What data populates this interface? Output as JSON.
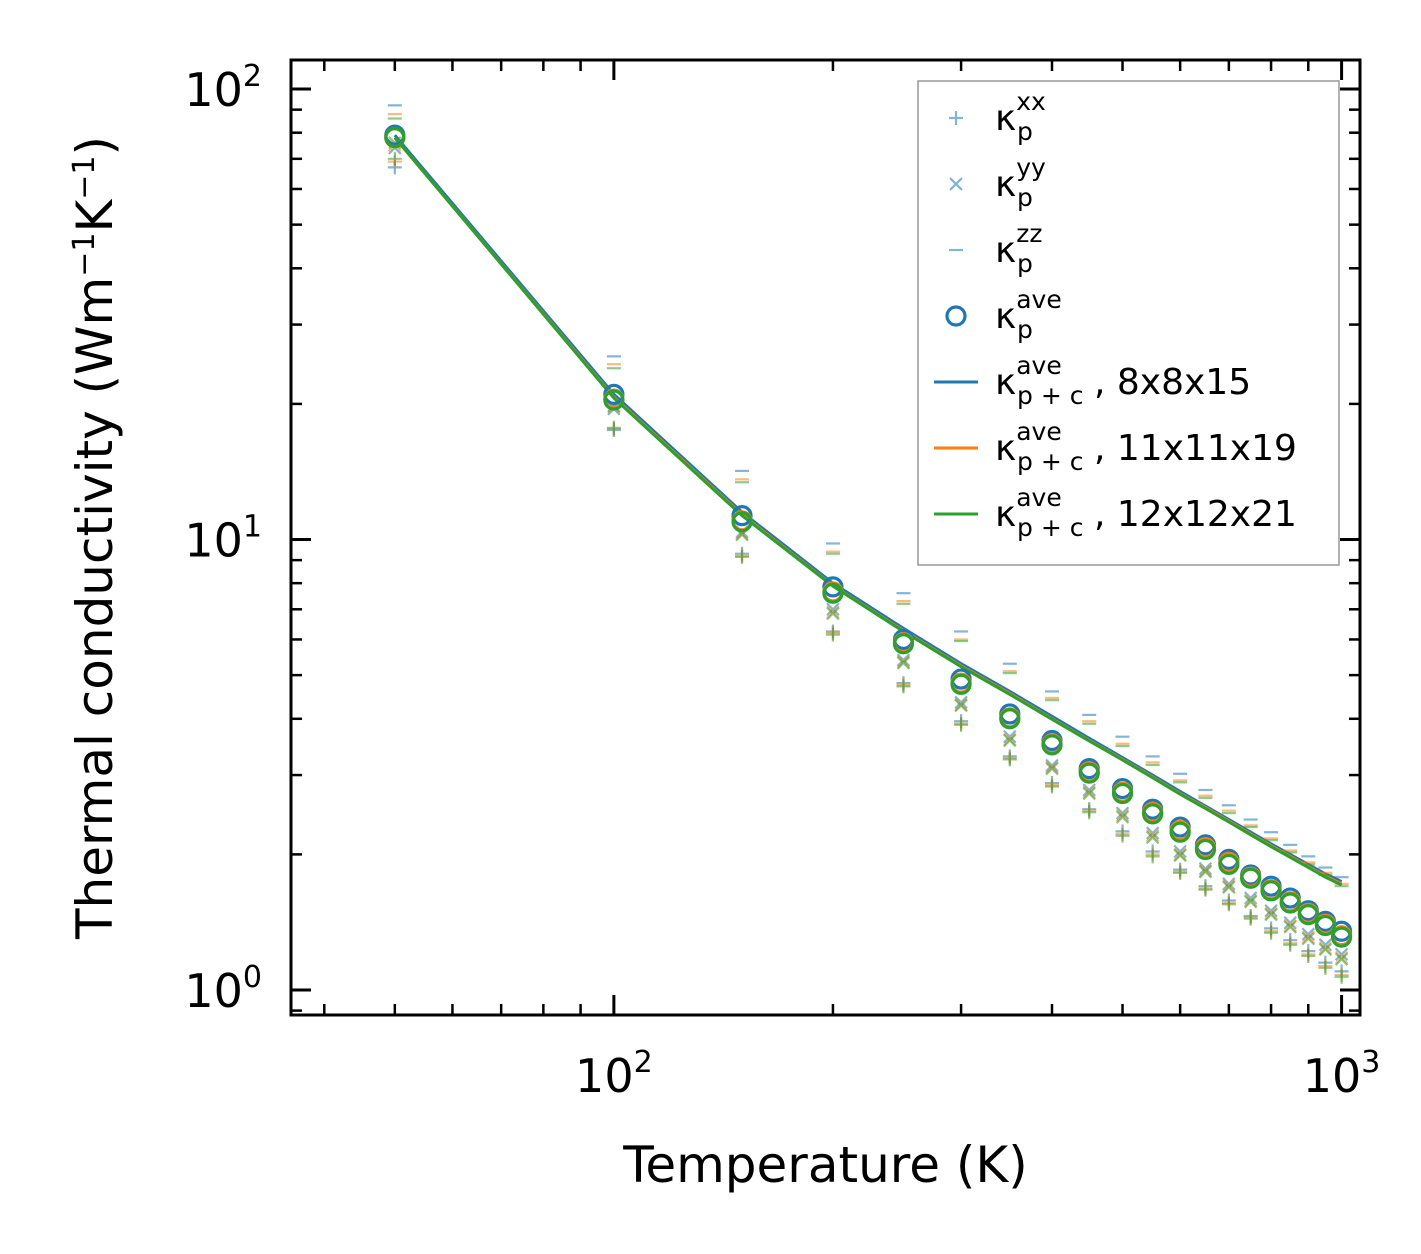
{
  "chart_data": {
    "type": "scatter",
    "xscale": "log",
    "yscale": "log",
    "xlim": [
      36,
      1060
    ],
    "ylim": [
      0.88,
      116
    ],
    "xlabel": "Temperature (K)",
    "ylabel_parts": {
      "main": "Thermal conductivity (Wm",
      "exp1": "−1",
      "mid": "K",
      "exp2": "−1",
      "end": ")"
    },
    "x_ticks": [
      {
        "value": 100,
        "base": "10",
        "exp": "2"
      },
      {
        "value": 1000,
        "base": "10",
        "exp": "3"
      }
    ],
    "y_ticks": [
      {
        "value": 1,
        "base": "10",
        "exp": "0"
      },
      {
        "value": 10,
        "base": "10",
        "exp": "1"
      },
      {
        "value": 100,
        "base": "10",
        "exp": "2"
      }
    ],
    "temperatures": [
      50,
      100,
      150,
      200,
      250,
      300,
      350,
      400,
      450,
      500,
      550,
      600,
      650,
      700,
      750,
      800,
      850,
      900,
      950,
      1000
    ],
    "meshes": [
      {
        "name": "8x8x15",
        "color": "#1f77b4",
        "kappa_xx": [
          67,
          17.5,
          9.3,
          6.25,
          4.8,
          3.95,
          3.3,
          2.88,
          2.52,
          2.25,
          2.03,
          1.85,
          1.7,
          1.58,
          1.46,
          1.37,
          1.29,
          1.22,
          1.15,
          1.1
        ],
        "kappa_yy": [
          74,
          19.5,
          10.4,
          7.0,
          5.4,
          4.35,
          3.65,
          3.15,
          2.78,
          2.47,
          2.23,
          2.03,
          1.86,
          1.72,
          1.6,
          1.5,
          1.41,
          1.33,
          1.26,
          1.2
        ],
        "kappa_zz": [
          92,
          25.5,
          14.2,
          9.8,
          7.6,
          6.25,
          5.3,
          4.6,
          4.08,
          3.65,
          3.3,
          3.02,
          2.78,
          2.57,
          2.39,
          2.24,
          2.1,
          1.98,
          1.87,
          1.78
        ],
        "kappa_ave": [
          79,
          21.0,
          11.3,
          7.85,
          6.0,
          4.9,
          4.1,
          3.58,
          3.1,
          2.8,
          2.52,
          2.3,
          2.1,
          1.95,
          1.8,
          1.7,
          1.6,
          1.5,
          1.42,
          1.35
        ],
        "kappa_pc_ave": [
          79,
          21.0,
          11.5,
          8.0,
          6.35,
          5.3,
          4.6,
          4.05,
          3.62,
          3.28,
          3.0,
          2.76,
          2.56,
          2.39,
          2.24,
          2.11,
          2.0,
          1.9,
          1.81,
          1.74
        ]
      },
      {
        "name": "11x11x19",
        "color": "#ff7f0e",
        "kappa_xx": [
          69,
          17.6,
          9.2,
          6.2,
          4.75,
          3.9,
          3.27,
          2.85,
          2.5,
          2.22,
          2.0,
          1.83,
          1.68,
          1.56,
          1.45,
          1.35,
          1.27,
          1.2,
          1.13,
          1.08
        ],
        "kappa_yy": [
          75,
          19.7,
          10.3,
          6.9,
          5.35,
          4.3,
          3.6,
          3.12,
          2.75,
          2.44,
          2.2,
          2.0,
          1.84,
          1.7,
          1.58,
          1.48,
          1.39,
          1.31,
          1.24,
          1.18
        ],
        "kappa_zz": [
          88,
          24.5,
          13.6,
          9.4,
          7.3,
          6.0,
          5.1,
          4.45,
          3.95,
          3.52,
          3.2,
          2.92,
          2.7,
          2.5,
          2.32,
          2.17,
          2.04,
          1.92,
          1.82,
          1.72
        ],
        "kappa_ave": [
          78,
          20.5,
          11.0,
          7.65,
          5.9,
          4.8,
          4.02,
          3.52,
          3.05,
          2.75,
          2.48,
          2.26,
          2.07,
          1.92,
          1.78,
          1.67,
          1.57,
          1.48,
          1.4,
          1.32
        ],
        "kappa_pc_ave": [
          78,
          20.7,
          11.35,
          7.9,
          6.27,
          5.24,
          4.55,
          4.0,
          3.58,
          3.25,
          2.97,
          2.73,
          2.54,
          2.37,
          2.22,
          2.09,
          1.98,
          1.88,
          1.79,
          1.72
        ]
      },
      {
        "name": "12x12x21",
        "color": "#2ca02c",
        "kappa_xx": [
          70,
          17.7,
          9.15,
          6.15,
          4.72,
          3.88,
          3.25,
          2.83,
          2.48,
          2.2,
          1.98,
          1.82,
          1.67,
          1.55,
          1.44,
          1.34,
          1.26,
          1.19,
          1.12,
          1.07
        ],
        "kappa_yy": [
          76,
          19.8,
          10.25,
          6.85,
          5.32,
          4.28,
          3.58,
          3.1,
          2.73,
          2.42,
          2.18,
          1.99,
          1.83,
          1.69,
          1.57,
          1.47,
          1.38,
          1.3,
          1.23,
          1.17
        ],
        "kappa_zz": [
          86,
          24.0,
          13.4,
          9.3,
          7.2,
          5.95,
          5.05,
          4.4,
          3.9,
          3.48,
          3.16,
          2.89,
          2.67,
          2.47,
          2.3,
          2.15,
          2.02,
          1.9,
          1.8,
          1.7
        ],
        "kappa_ave": [
          78,
          20.4,
          10.95,
          7.6,
          5.87,
          4.77,
          4.0,
          3.5,
          3.03,
          2.73,
          2.46,
          2.24,
          2.05,
          1.9,
          1.77,
          1.66,
          1.56,
          1.47,
          1.39,
          1.31
        ],
        "kappa_pc_ave": [
          78,
          20.6,
          11.3,
          7.88,
          6.25,
          5.22,
          4.53,
          3.99,
          3.57,
          3.24,
          2.96,
          2.72,
          2.53,
          2.36,
          2.21,
          2.08,
          1.97,
          1.87,
          1.78,
          1.71
        ]
      }
    ],
    "legend": {
      "position": "top-right",
      "entries": [
        {
          "marker": "plus",
          "base": "κ",
          "sub": "p",
          "sup": "xx",
          "suffix": "",
          "color": "#1f77b4"
        },
        {
          "marker": "cross",
          "base": "κ",
          "sub": "p",
          "sup": "yy",
          "suffix": "",
          "color": "#1f77b4"
        },
        {
          "marker": "hline",
          "base": "κ",
          "sub": "p",
          "sup": "zz",
          "suffix": "",
          "color": "#1f77b4"
        },
        {
          "marker": "circle",
          "base": "κ",
          "sub": "p",
          "sup": "ave",
          "suffix": "",
          "color": "#1f77b4"
        },
        {
          "marker": "line",
          "base": "κ",
          "sub": "p + c",
          "sup": "ave",
          "suffix": ", 8x8x15",
          "color": "#1f77b4"
        },
        {
          "marker": "line",
          "base": "κ",
          "sub": "p + c",
          "sup": "ave",
          "suffix": ", 11x11x19",
          "color": "#ff7f0e"
        },
        {
          "marker": "line",
          "base": "κ",
          "sub": "p + c",
          "sup": "ave",
          "suffix": ", 12x12x21",
          "color": "#2ca02c"
        }
      ]
    }
  }
}
